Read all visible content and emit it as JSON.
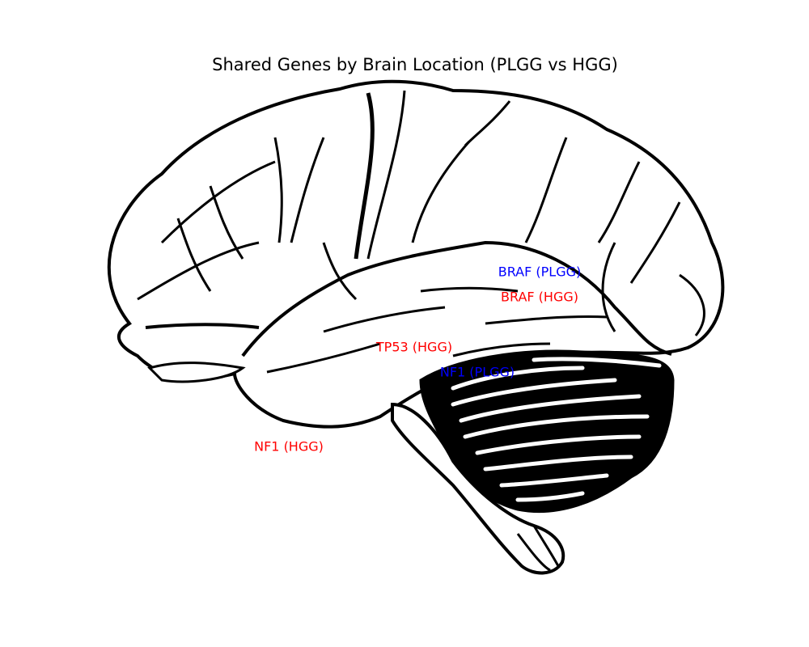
{
  "title": "Shared Genes by Brain Location (PLGG vs HGG)",
  "colors": {
    "plgg": "#0000ff",
    "hgg": "#ff0000",
    "outline": "#000000"
  },
  "labels": [
    {
      "id": "braf-plgg",
      "text": "BRAF (PLGG)",
      "group": "plgg"
    },
    {
      "id": "braf-hgg",
      "text": "BRAF (HGG)",
      "group": "hgg"
    },
    {
      "id": "tp53-hgg",
      "text": "TP53 (HGG)",
      "group": "hgg"
    },
    {
      "id": "nf1-plgg",
      "text": "NF1 (PLGG)",
      "group": "plgg"
    },
    {
      "id": "nf1-hgg",
      "text": "NF1 (HGG)",
      "group": "hgg"
    }
  ]
}
